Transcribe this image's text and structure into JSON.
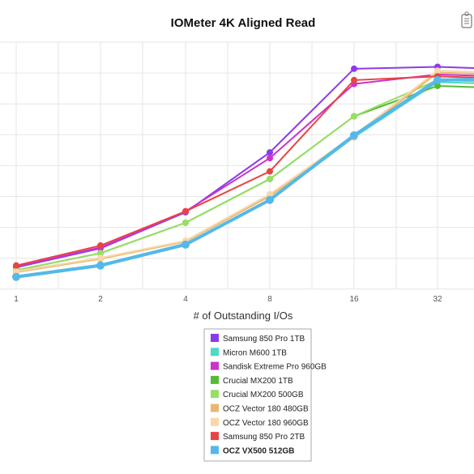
{
  "chart_data": {
    "type": "line",
    "title": "IOMeter 4K Aligned Read",
    "xlabel": "# of Outstanding I/Os",
    "ylabel": "",
    "x": [
      "1",
      "2",
      "4",
      "8",
      "16",
      "32"
    ],
    "grid": true,
    "legend_position": "bottom-center",
    "series": [
      {
        "name": "Samsung 850 Pro 1TB",
        "color": "#8a3ce8",
        "values": [
          11.5,
          21.5,
          40.5,
          72,
          116,
          117
        ],
        "bold": false
      },
      {
        "name": "Micron M600 1TB",
        "color": "#4ed9c8",
        "values": [
          7,
          13,
          24,
          47,
          80,
          109
        ],
        "bold": false
      },
      {
        "name": "Sandisk Extreme Pro 960GB",
        "color": "#cc33cc",
        "values": [
          12,
          22,
          41,
          69,
          108,
          113
        ],
        "bold": false
      },
      {
        "name": "Crucial MX200 1TB",
        "color": "#55bb33",
        "values": [
          10,
          19,
          35,
          58,
          91,
          107
        ],
        "bold": false
      },
      {
        "name": "Crucial MX200 500GB",
        "color": "#99dd66",
        "values": [
          10,
          19,
          35,
          58,
          91,
          110
        ],
        "bold": false
      },
      {
        "name": "OCZ Vector 180 480GB",
        "color": "#e8b870",
        "values": [
          9,
          16,
          25,
          49,
          80,
          114
        ],
        "bold": false
      },
      {
        "name": "OCZ Vector 180 960GB",
        "color": "#f7d8a8",
        "values": [
          9.5,
          16.5,
          25.5,
          50,
          81,
          115
        ],
        "bold": false
      },
      {
        "name": "Samsung 850 Pro 2TB",
        "color": "#e84444",
        "values": [
          12.5,
          23,
          41,
          62,
          110,
          112
        ],
        "bold": false
      },
      {
        "name": "OCZ VX500 512GB",
        "color": "#55b8e8",
        "values": [
          6.5,
          12.5,
          23.5,
          47,
          81,
          110
        ],
        "bold": true
      }
    ]
  }
}
